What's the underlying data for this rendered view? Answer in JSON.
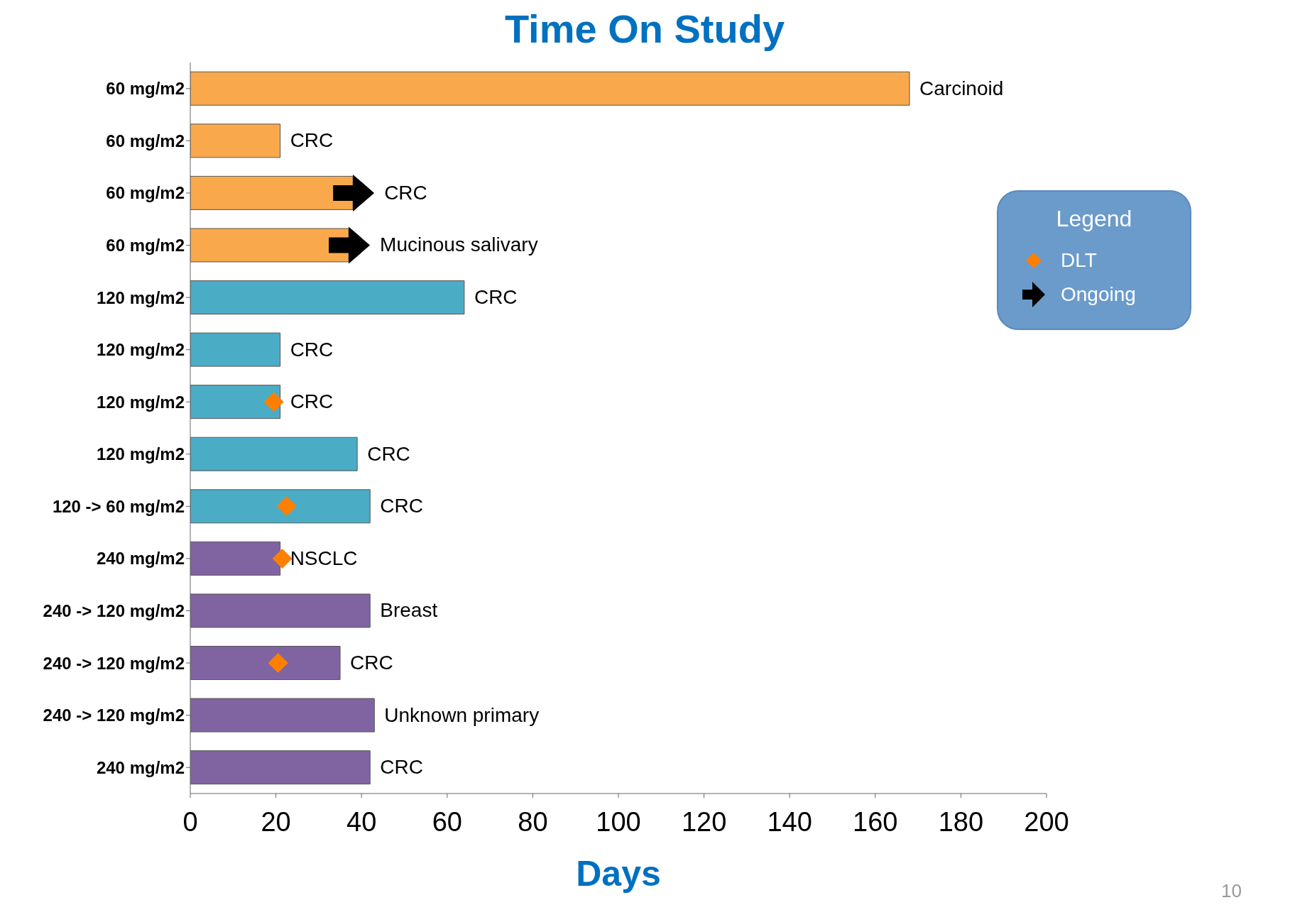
{
  "chart_data": {
    "type": "bar",
    "orientation": "horizontal",
    "title": "Time On Study",
    "xlabel": "Days",
    "categories": [
      "60 mg/m2",
      "60 mg/m2",
      "60 mg/m2",
      "60 mg/m2",
      "120 mg/m2",
      "120 mg/m2",
      "120 mg/m2",
      "120 mg/m2",
      "120 -> 60 mg/m2",
      "240 mg/m2",
      "240 -> 120 mg/m2",
      "240 -> 120 mg/m2",
      "240 -> 120 mg/m2",
      "240 mg/m2"
    ],
    "values": [
      168,
      21,
      38,
      37,
      64,
      21,
      21,
      39,
      42,
      21,
      42,
      35,
      43,
      42
    ],
    "colors": [
      "#f9a94b",
      "#f9a94b",
      "#f9a94b",
      "#f9a94b",
      "#4bacc6",
      "#4bacc6",
      "#4bacc6",
      "#4bacc6",
      "#4bacc6",
      "#8064a2",
      "#8064a2",
      "#8064a2",
      "#8064a2",
      "#8064a2"
    ],
    "value_labels": [
      "Carcinoid",
      "CRC",
      "CRC",
      "Mucinous salivary",
      "CRC",
      "CRC",
      "CRC",
      "CRC",
      "CRC",
      "NSCLC",
      "Breast",
      "CRC",
      "Unknown primary",
      "CRC"
    ],
    "series": [
      {
        "name": "DLT",
        "type": "scatter",
        "marker": "diamond",
        "color": "#ff7f00",
        "values": [
          null,
          null,
          null,
          null,
          null,
          null,
          19.5,
          null,
          22.5,
          21.5,
          null,
          20.5,
          null,
          null
        ]
      },
      {
        "name": "Ongoing",
        "type": "scatter",
        "marker": "triangle",
        "color": "#000000",
        "values": [
          null,
          null,
          38,
          37,
          null,
          null,
          null,
          null,
          null,
          null,
          null,
          null,
          null,
          null
        ]
      }
    ],
    "xlim": [
      0,
      200
    ],
    "xticks": [
      0,
      20,
      40,
      60,
      80,
      100,
      120,
      140,
      160,
      180,
      200
    ],
    "legend": "top right",
    "legend_title": "Legend",
    "annotations": [
      "10"
    ]
  }
}
